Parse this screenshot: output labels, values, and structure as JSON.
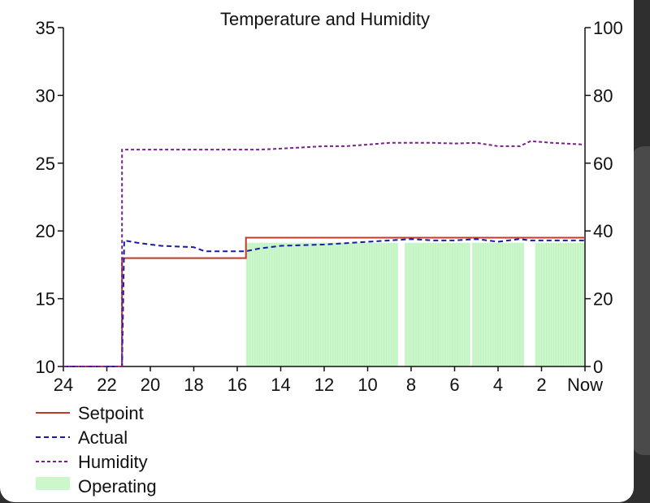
{
  "chart_data": {
    "type": "line",
    "title": "Temperature and Humidity",
    "x_ticks": [
      "24",
      "22",
      "20",
      "18",
      "16",
      "14",
      "12",
      "10",
      "8",
      "6",
      "4",
      "2",
      "Now"
    ],
    "xlim": [
      -24,
      0
    ],
    "y_left": {
      "ticks": [
        "10",
        "15",
        "20",
        "25",
        "30",
        "35"
      ],
      "lim": [
        10,
        35
      ]
    },
    "y_right": {
      "ticks": [
        "0",
        "20",
        "40",
        "60",
        "80",
        "100"
      ],
      "lim": [
        0,
        100
      ]
    },
    "grid": false,
    "legend_placement": "bottom-left",
    "colors": {
      "setpoint": "#c0392b",
      "actual": "#1a1aa8",
      "humidity": "#7a1f8f",
      "operating": "#ccf7cc"
    },
    "series": [
      {
        "name": "Setpoint",
        "axis": "left",
        "style": "solid",
        "x": [
          -24,
          -21.3,
          -21.3,
          -15.6,
          -15.6,
          0
        ],
        "y": [
          10,
          10,
          18.0,
          18.0,
          19.5,
          19.5
        ]
      },
      {
        "name": "Actual",
        "axis": "left",
        "style": "dashed",
        "x": [
          -24,
          -21.3,
          -21.2,
          -20.5,
          -19.5,
          -18.0,
          -17.5,
          -16.0,
          -15.6,
          -15.0,
          -14.0,
          -12.0,
          -11.0,
          -10.0,
          -9.0,
          -8.0,
          -7.0,
          -6.0,
          -5.0,
          -4.0,
          -3.0,
          -2.5,
          0
        ],
        "y": [
          10,
          10,
          19.3,
          19.1,
          18.9,
          18.8,
          18.5,
          18.5,
          18.5,
          18.7,
          18.9,
          19.0,
          19.1,
          19.2,
          19.3,
          19.4,
          19.3,
          19.3,
          19.4,
          19.2,
          19.4,
          19.3,
          19.3
        ]
      },
      {
        "name": "Humidity",
        "axis": "right",
        "style": "dashed",
        "x": [
          -24,
          -21.3,
          -21.3,
          -15.0,
          -14.0,
          -12.0,
          -11.0,
          -10.0,
          -9.0,
          -8.0,
          -7.0,
          -6.0,
          -5.0,
          -4.0,
          -3.0,
          -2.5,
          -1.5,
          0
        ],
        "y": [
          0,
          0,
          64.0,
          64.0,
          64.3,
          65.0,
          65.0,
          65.5,
          66.0,
          66.0,
          66.0,
          65.8,
          66.0,
          65.0,
          65.0,
          66.5,
          66.0,
          65.5
        ]
      }
    ],
    "operating": {
      "name": "Operating",
      "axis": "right",
      "segments": [
        {
          "start": -15.6,
          "end": -8.6,
          "level": 36.5
        },
        {
          "start": -8.3,
          "end": -5.3,
          "level": 36.5
        },
        {
          "start": -5.2,
          "end": -2.8,
          "level": 36.5
        },
        {
          "start": -2.3,
          "end": 0,
          "level": 36.5
        }
      ]
    }
  }
}
